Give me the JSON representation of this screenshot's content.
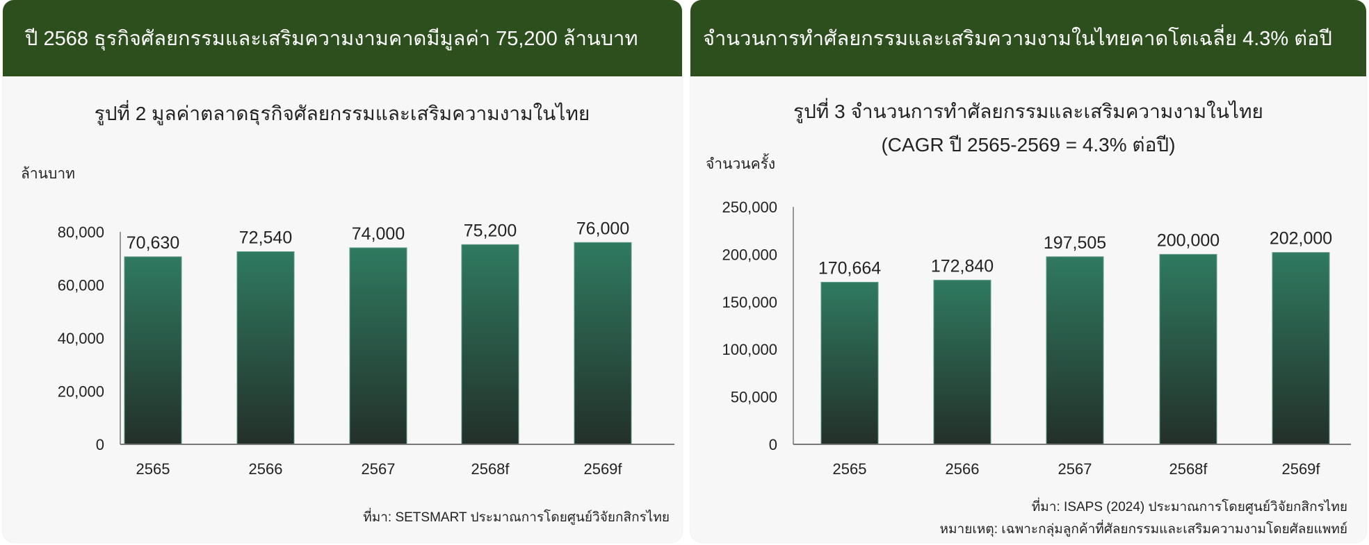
{
  "colors": {
    "header_bg": "#2d4f1e",
    "bar_top": "#2f7a60",
    "bar_bottom": "#23302a",
    "card_bg": "#f7f7f7"
  },
  "cards": [
    {
      "header": "ปี 2568 ธุรกิจศัลยกรรมและเสริมความงามคาดมีมูลค่า 75,200 ล้านบาท",
      "footnotes": [
        "ที่มา: SETSMART ประมาณการโดยศูนย์วิจัยกสิกรไทย"
      ]
    },
    {
      "header": "จำนวนการทำศัลยกรรมและเสริมความงามในไทยคาดโตเฉลี่ย 4.3% ต่อปี",
      "footnotes": [
        "ที่มา: ISAPS (2024) ประมาณการโดยศูนย์วิจัยกสิกรไทย",
        "หมายเหตุ: เฉพาะกลุ่มลูกค้าที่ศัลยกรรมและเสริมความงามโดยศัลยแพทย์"
      ]
    }
  ],
  "chart_data": [
    {
      "type": "bar",
      "title": [
        "รูปที่ 2  มูลค่าตลาดธุรกิจศัลยกรรมและเสริมความงามในไทย"
      ],
      "ylabel": "ล้านบาท",
      "xlabel": "",
      "categories": [
        "2565",
        "2566",
        "2567",
        "2568f",
        "2569f"
      ],
      "values": [
        70630,
        72540,
        74000,
        75200,
        76000
      ],
      "data_labels": [
        "70,630",
        "72,540",
        "74,000",
        "75,200",
        "76,000"
      ],
      "ylim": [
        0,
        80000
      ],
      "yticks": [
        0,
        20000,
        40000,
        60000,
        80000
      ],
      "ytick_labels": [
        "0",
        "20,000",
        "40,000",
        "60,000",
        "80,000"
      ],
      "grid": false
    },
    {
      "type": "bar",
      "title": [
        "รูปที่ 3 จำนวนการทำศัลยกรรมและเสริมความงามในไทย",
        "(CAGR ปี 2565-2569 = 4.3% ต่อปี)"
      ],
      "ylabel": "จำนวนครั้ง",
      "xlabel": "",
      "categories": [
        "2565",
        "2566",
        "2567",
        "2568f",
        "2569f"
      ],
      "values": [
        170664,
        172840,
        197505,
        200000,
        202000
      ],
      "data_labels": [
        "170,664",
        "172,840",
        "197,505",
        "200,000",
        "202,000"
      ],
      "ylim": [
        0,
        250000
      ],
      "yticks": [
        0,
        50000,
        100000,
        150000,
        200000,
        250000
      ],
      "ytick_labels": [
        "0",
        "50,000",
        "100,000",
        "150,000",
        "200,000",
        "250,000"
      ],
      "grid": false
    }
  ]
}
